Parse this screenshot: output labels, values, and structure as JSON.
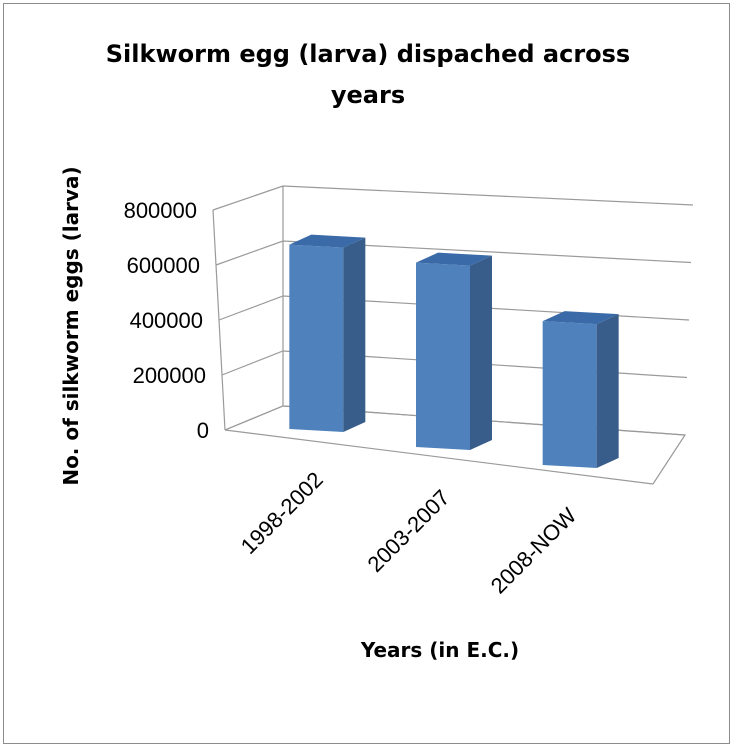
{
  "chart_data": {
    "type": "bar",
    "title_lines": [
      "Silkworm egg  (larva) dispached across",
      "years"
    ],
    "xlabel": "Years (in E.C.)",
    "ylabel": "No. of silkworm eggs (larva)",
    "categories": [
      "1998-2002",
      "2003-2007",
      "2008-NOW"
    ],
    "values": [
      730000,
      730000,
      570000
    ],
    "yticks": [
      0,
      200000,
      400000,
      600000,
      800000
    ],
    "ytick_labels": [
      "0",
      "200000",
      "400000",
      "600000",
      "800000"
    ],
    "ylim": [
      0,
      800000
    ],
    "grid": true,
    "three_d": true,
    "colors": {
      "front": "#4f81bd",
      "side": "#385d8a",
      "top": "#3a6aa8"
    }
  }
}
